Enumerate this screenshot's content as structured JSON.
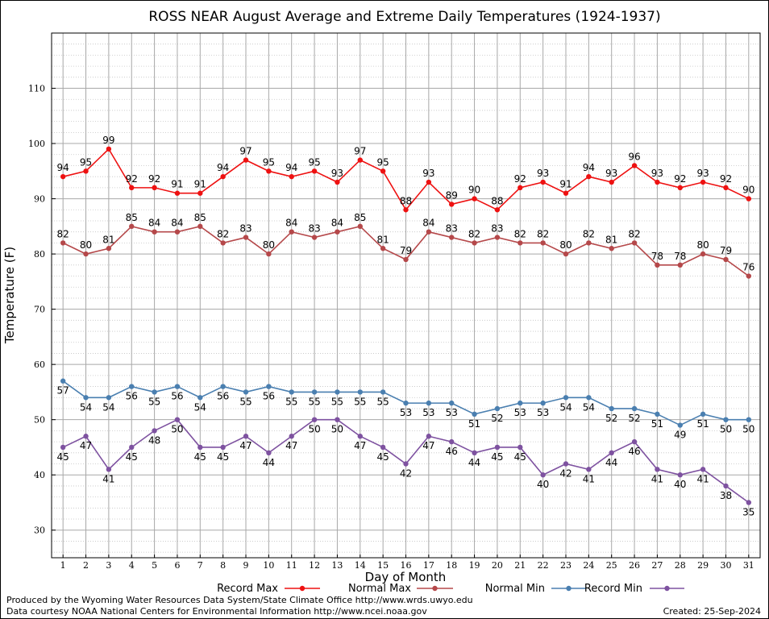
{
  "chart_data": {
    "type": "line",
    "title": "ROSS NEAR August Average and Extreme Daily Temperatures (1924-1937)",
    "xlabel": "Day of Month",
    "ylabel": "Temperature (F)",
    "x": [
      1,
      2,
      3,
      4,
      5,
      6,
      7,
      8,
      9,
      10,
      11,
      12,
      13,
      14,
      15,
      16,
      17,
      18,
      19,
      20,
      21,
      22,
      23,
      24,
      25,
      26,
      27,
      28,
      29,
      30,
      31
    ],
    "xlim": [
      0.5,
      31.5
    ],
    "ylim": [
      25,
      120
    ],
    "yticks": [
      30,
      40,
      50,
      60,
      70,
      80,
      90,
      100,
      110
    ],
    "grid": true,
    "legend_position": "bottom",
    "series": [
      {
        "name": "Record Max",
        "color": "#ee1111",
        "values": [
          94,
          95,
          99,
          92,
          92,
          91,
          91,
          94,
          97,
          95,
          94,
          95,
          93,
          97,
          95,
          88,
          93,
          89,
          90,
          88,
          92,
          93,
          91,
          94,
          93,
          96,
          93,
          92,
          93,
          92,
          90
        ]
      },
      {
        "name": "Normal Max",
        "color": "#b5484a",
        "values": [
          82,
          80,
          81,
          85,
          84,
          84,
          85,
          82,
          83,
          80,
          84,
          83,
          84,
          85,
          81,
          79,
          84,
          83,
          82,
          83,
          82,
          82,
          80,
          82,
          81,
          82,
          78,
          78,
          80,
          79,
          76
        ]
      },
      {
        "name": "Normal Min",
        "color": "#4a7fb0",
        "values": [
          57,
          54,
          54,
          56,
          55,
          56,
          54,
          56,
          55,
          56,
          55,
          55,
          55,
          55,
          55,
          53,
          53,
          53,
          51,
          52,
          53,
          53,
          54,
          54,
          52,
          52,
          51,
          49,
          51,
          50,
          50
        ]
      },
      {
        "name": "Record Min",
        "color": "#7e52a0",
        "values": [
          45,
          47,
          41,
          45,
          48,
          50,
          45,
          45,
          47,
          44,
          47,
          50,
          50,
          47,
          45,
          42,
          47,
          46,
          44,
          45,
          45,
          40,
          42,
          41,
          44,
          46,
          41,
          40,
          41,
          38,
          35
        ]
      }
    ]
  },
  "footer": {
    "line1": "Produced by the Wyoming Water Resources Data System/State Climate Office http://www.wrds.uwyo.edu",
    "line2": "Data courtesy NOAA National Centers for Environmental Information http://www.ncei.noaa.gov",
    "created": "Created:  25-Sep-2024"
  }
}
